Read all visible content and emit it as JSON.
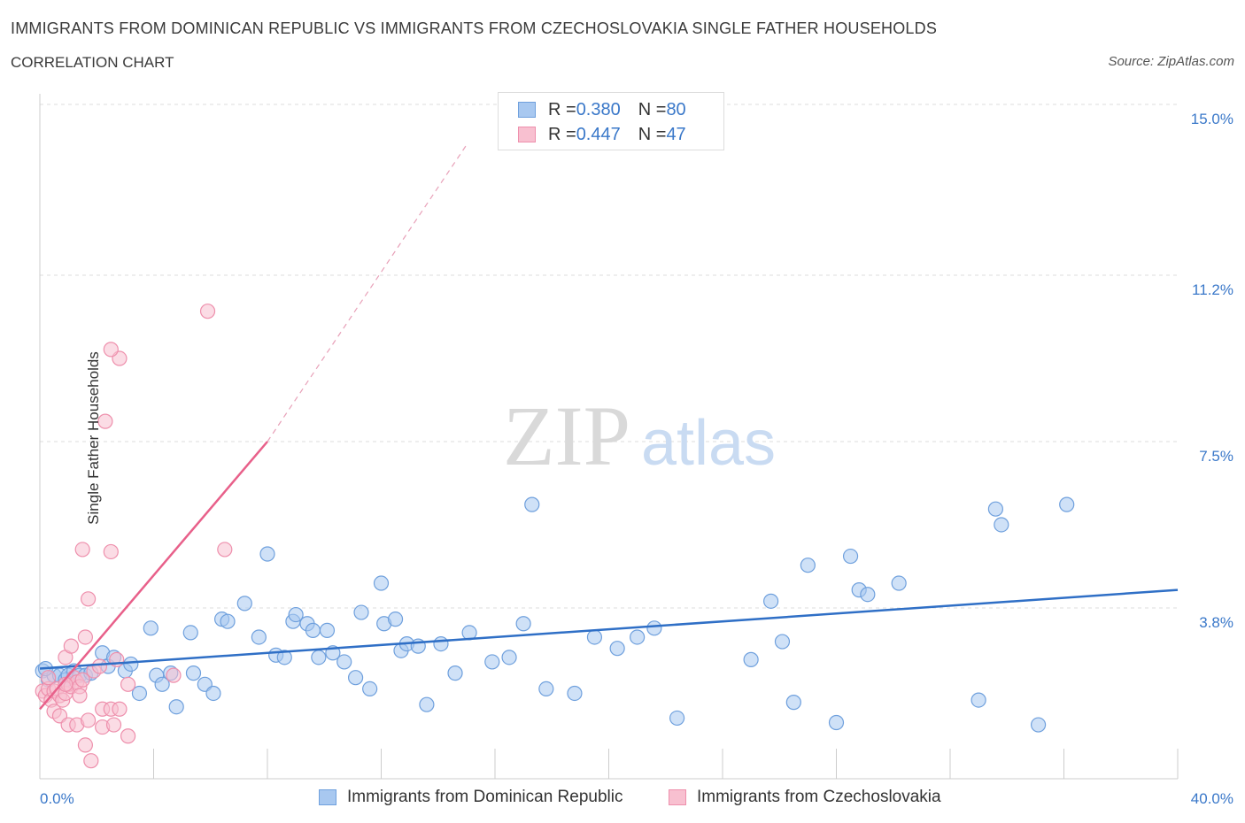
{
  "header": {
    "title": "IMMIGRANTS FROM DOMINICAN REPUBLIC VS IMMIGRANTS FROM CZECHOSLOVAKIA SINGLE FATHER HOUSEHOLDS",
    "subtitle": "CORRELATION CHART",
    "source": "Source: ZipAtlas.com"
  },
  "watermark": {
    "zip": "ZIP",
    "atlas": "atlas"
  },
  "stats_legend": {
    "rows": [
      {
        "r_label": "R = ",
        "r_value": "0.380",
        "n_label": "N = ",
        "n_value": "80",
        "color": "#a8c8f0",
        "border": "#6fa0dd"
      },
      {
        "r_label": "R = ",
        "r_value": "0.447",
        "n_label": "N = ",
        "n_value": "47",
        "color": "#f8c0d0",
        "border": "#ee8fac"
      }
    ]
  },
  "chart_data": {
    "type": "scatter",
    "title": "IMMIGRANTS FROM DOMINICAN REPUBLIC VS IMMIGRANTS FROM CZECHOSLOVAKIA SINGLE FATHER HOUSEHOLDS",
    "subtitle": "CORRELATION CHART",
    "ylabel": "Single Father Households",
    "xlabel": "",
    "xlim": [
      0,
      40
    ],
    "ylim": [
      0,
      15.0
    ],
    "x_tick_labels": {
      "left": "0.0%",
      "right": "40.0%"
    },
    "y_ticks": [
      {
        "value": 3.8,
        "label": "3.8%"
      },
      {
        "value": 7.5,
        "label": "7.5%"
      },
      {
        "value": 11.2,
        "label": "11.2%"
      },
      {
        "value": 15.0,
        "label": "15.0%"
      }
    ],
    "grid": true,
    "legend_position": "bottom",
    "series": [
      {
        "name": "Immigrants from Dominican Republic",
        "color": "#6fa0dd",
        "fill": "#a8c8f0",
        "trend": {
          "x": [
            0,
            40
          ],
          "y": [
            2.45,
            4.2
          ],
          "color": "#2f6fc6"
        },
        "points": [
          [
            0.1,
            2.4
          ],
          [
            0.3,
            2.2
          ],
          [
            0.5,
            2.3
          ],
          [
            0.7,
            2.3
          ],
          [
            0.9,
            2.2
          ],
          [
            1.0,
            2.3
          ],
          [
            1.2,
            2.4
          ],
          [
            1.4,
            2.3
          ],
          [
            1.6,
            2.3
          ],
          [
            1.8,
            2.35
          ],
          [
            2.2,
            2.8
          ],
          [
            2.4,
            2.5
          ],
          [
            2.6,
            2.7
          ],
          [
            3.0,
            2.4
          ],
          [
            3.2,
            2.55
          ],
          [
            3.5,
            1.9
          ],
          [
            3.9,
            3.35
          ],
          [
            4.1,
            2.3
          ],
          [
            4.3,
            2.1
          ],
          [
            4.6,
            2.35
          ],
          [
            4.8,
            1.6
          ],
          [
            5.3,
            3.25
          ],
          [
            5.4,
            2.35
          ],
          [
            5.8,
            2.1
          ],
          [
            6.1,
            1.9
          ],
          [
            6.4,
            3.55
          ],
          [
            6.6,
            3.5
          ],
          [
            7.2,
            3.9
          ],
          [
            7.7,
            3.15
          ],
          [
            8.0,
            5.0
          ],
          [
            8.3,
            2.75
          ],
          [
            8.6,
            2.7
          ],
          [
            8.9,
            3.5
          ],
          [
            9.0,
            3.65
          ],
          [
            9.4,
            3.45
          ],
          [
            9.6,
            3.3
          ],
          [
            9.8,
            2.7
          ],
          [
            10.1,
            3.3
          ],
          [
            10.3,
            2.8
          ],
          [
            10.7,
            2.6
          ],
          [
            11.1,
            2.25
          ],
          [
            11.3,
            3.7
          ],
          [
            11.6,
            2.0
          ],
          [
            12.0,
            4.35
          ],
          [
            12.1,
            3.45
          ],
          [
            12.5,
            3.55
          ],
          [
            12.7,
            2.85
          ],
          [
            12.9,
            3.0
          ],
          [
            13.3,
            2.95
          ],
          [
            13.6,
            1.65
          ],
          [
            14.1,
            3.0
          ],
          [
            14.6,
            2.35
          ],
          [
            15.1,
            3.25
          ],
          [
            15.9,
            2.6
          ],
          [
            16.5,
            2.7
          ],
          [
            17.0,
            3.45
          ],
          [
            17.3,
            6.1
          ],
          [
            17.8,
            2.0
          ],
          [
            18.8,
            1.9
          ],
          [
            19.5,
            3.15
          ],
          [
            20.3,
            2.9
          ],
          [
            21.0,
            3.15
          ],
          [
            21.6,
            3.35
          ],
          [
            22.4,
            1.35
          ],
          [
            25.0,
            2.65
          ],
          [
            25.7,
            3.95
          ],
          [
            26.1,
            3.05
          ],
          [
            26.5,
            1.7
          ],
          [
            27.0,
            4.75
          ],
          [
            28.0,
            1.25
          ],
          [
            28.5,
            4.95
          ],
          [
            28.8,
            4.2
          ],
          [
            29.1,
            4.1
          ],
          [
            30.2,
            4.35
          ],
          [
            33.0,
            1.75
          ],
          [
            33.6,
            6.0
          ],
          [
            33.8,
            5.65
          ],
          [
            35.1,
            1.2
          ],
          [
            36.1,
            6.1
          ],
          [
            0.2,
            2.45
          ]
        ]
      },
      {
        "name": "Immigrants from Czechoslovakia",
        "color": "#ee8fac",
        "fill": "#f8c0d0",
        "trend": {
          "x": [
            0,
            8.0
          ],
          "y": [
            1.55,
            7.5
          ],
          "color": "#e8608a",
          "dashed_to": [
            15.0,
            14.1
          ]
        },
        "points": [
          [
            0.1,
            1.95
          ],
          [
            0.2,
            1.85
          ],
          [
            0.3,
            2.0
          ],
          [
            0.4,
            1.75
          ],
          [
            0.5,
            1.95
          ],
          [
            0.6,
            2.0
          ],
          [
            0.7,
            1.85
          ],
          [
            0.8,
            1.75
          ],
          [
            0.9,
            1.9
          ],
          [
            1.0,
            2.1
          ],
          [
            1.1,
            2.05
          ],
          [
            1.2,
            2.25
          ],
          [
            1.3,
            2.15
          ],
          [
            1.4,
            2.05
          ],
          [
            1.5,
            2.2
          ],
          [
            0.9,
            2.1
          ],
          [
            0.5,
            1.5
          ],
          [
            0.7,
            1.4
          ],
          [
            0.9,
            2.7
          ],
          [
            1.0,
            1.2
          ],
          [
            1.1,
            2.95
          ],
          [
            1.3,
            1.2
          ],
          [
            1.4,
            1.85
          ],
          [
            1.5,
            5.1
          ],
          [
            1.6,
            0.75
          ],
          [
            1.6,
            3.15
          ],
          [
            1.7,
            4.0
          ],
          [
            1.7,
            1.3
          ],
          [
            1.8,
            0.4
          ],
          [
            1.9,
            2.4
          ],
          [
            2.1,
            2.5
          ],
          [
            2.2,
            1.55
          ],
          [
            2.2,
            1.15
          ],
          [
            2.5,
            1.55
          ],
          [
            2.5,
            5.05
          ],
          [
            2.6,
            1.2
          ],
          [
            2.7,
            2.65
          ],
          [
            2.8,
            9.35
          ],
          [
            2.8,
            1.55
          ],
          [
            3.1,
            0.95
          ],
          [
            3.1,
            2.1
          ],
          [
            2.3,
            7.95
          ],
          [
            2.5,
            9.55
          ],
          [
            4.7,
            2.3
          ],
          [
            5.9,
            10.4
          ],
          [
            6.5,
            5.1
          ],
          [
            0.3,
            2.25
          ]
        ]
      }
    ]
  },
  "bottom_legend": {
    "items": [
      {
        "label": "Immigrants from Dominican Republic",
        "color": "#a8c8f0",
        "border": "#6fa0dd"
      },
      {
        "label": "Immigrants from Czechoslovakia",
        "color": "#f8c0d0",
        "border": "#ee8fac"
      }
    ]
  }
}
